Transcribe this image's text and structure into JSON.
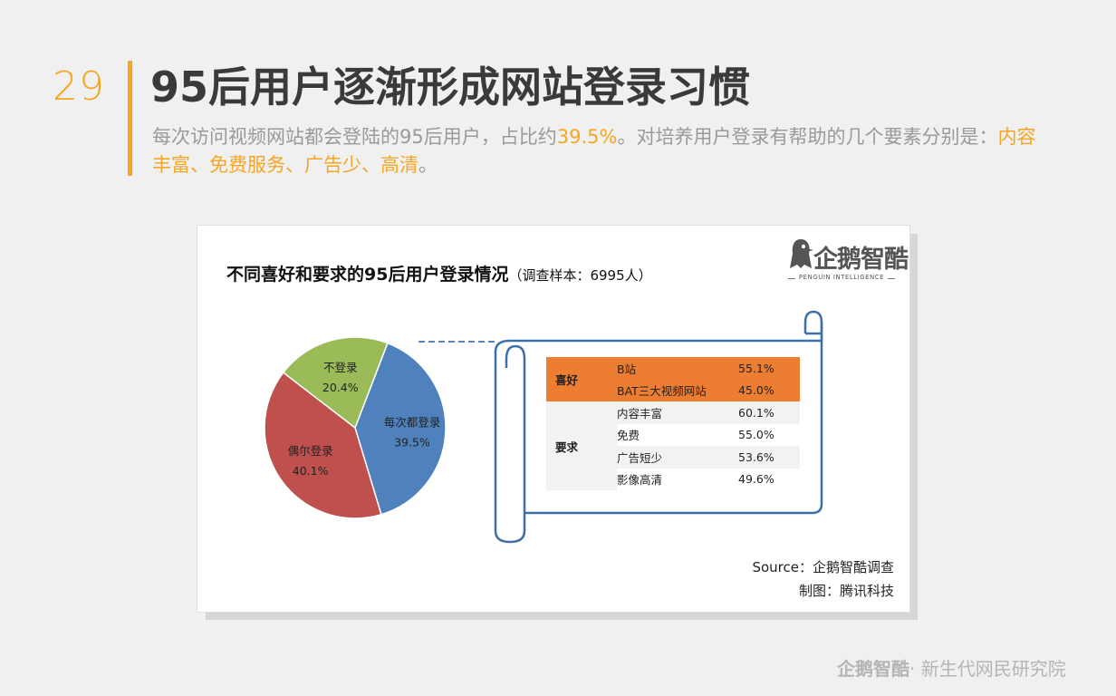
{
  "slide": {
    "number": "29",
    "title": "95后用户逐渐形成网站登录习惯",
    "subtitle_part1": "每次访问视频网站都会登陆的95后用户，占比约",
    "subtitle_highlight1": "39.5%",
    "subtitle_part2": "。对培养用户登录有帮助的几个要素分别是：",
    "subtitle_highlight2": "内容丰富、免费服务、广告少、高清",
    "subtitle_part3": "。"
  },
  "logo": {
    "text": "企鹅智酷",
    "tagline": "PENGUIN INTELLIGENCE"
  },
  "chart_data": {
    "type": "pie",
    "title": "不同喜好和要求的95后用户登录情况",
    "sample_note": "（调查样本：6995人）",
    "series": [
      {
        "label": "每次都登录",
        "value": 39.5,
        "value_label": "39.5%",
        "color": "#4f81bd"
      },
      {
        "label": "偶尔登录",
        "value": 40.1,
        "value_label": "40.1%",
        "color": "#c0504d"
      },
      {
        "label": "不登录",
        "value": 20.4,
        "value_label": "20.4%",
        "color": "#9bbb59"
      }
    ],
    "breakdown_table": {
      "groups": [
        {
          "category": "喜好",
          "rows": [
            {
              "item": "B站",
              "value": "55.1%"
            },
            {
              "item": "BAT三大视频网站",
              "value": "45.0%"
            }
          ]
        },
        {
          "category": "要求",
          "rows": [
            {
              "item": "内容丰富",
              "value": "60.1%"
            },
            {
              "item": "免费",
              "value": "55.0%"
            },
            {
              "item": "广告短少",
              "value": "53.6%"
            },
            {
              "item": "影像高清",
              "value": "49.6%"
            }
          ]
        }
      ]
    }
  },
  "source": {
    "line1": "Source：企鹅智酷调查",
    "line2": "制图：腾讯科技"
  },
  "footer": {
    "brand": "企鹅智酷",
    "text": "· 新生代网民研究院"
  },
  "colors": {
    "accent": "#f5a623",
    "table_header": "#ed7d31",
    "scroll_outline": "#3f6fa8"
  }
}
